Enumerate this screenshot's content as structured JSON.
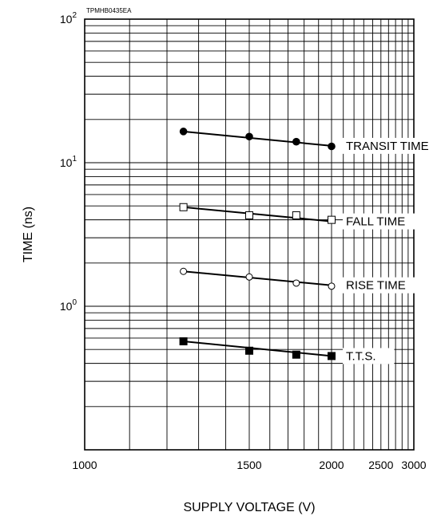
{
  "figure_code": "TPMHB0435EA",
  "chart_data": {
    "type": "line",
    "xlabel": "SUPPLY VOLTAGE (V)",
    "ylabel": "TIME (ns)",
    "x_scale": "reciprocal",
    "y_scale": "log",
    "xlim": [
      1000,
      3000
    ],
    "ylim": [
      0.1,
      100
    ],
    "grid": true,
    "x_ticks": [
      1000,
      1500,
      2000,
      2500,
      3000
    ],
    "x_tick_labels": [
      "1000",
      "1500",
      "2000",
      "2500",
      "3000"
    ],
    "y_tick_labels": [
      {
        "base": "10",
        "exp": "0",
        "value": 1
      },
      {
        "base": "10",
        "exp": "1",
        "value": 10
      },
      {
        "base": "10",
        "exp": "2",
        "value": 100
      }
    ],
    "series": [
      {
        "name": "TRANSIT TIME",
        "marker": "filled-circle",
        "x": [
          1250,
          1500,
          1750,
          2000
        ],
        "y": [
          16.5,
          15.2,
          14.0,
          13.0
        ],
        "fit": [
          16.5,
          13.1
        ]
      },
      {
        "name": "FALL TIME",
        "marker": "open-square",
        "x": [
          1250,
          1500,
          1750,
          2000
        ],
        "y": [
          4.9,
          4.3,
          4.3,
          4.0
        ],
        "fit": [
          4.9,
          3.9
        ]
      },
      {
        "name": "RISE TIME",
        "marker": "open-circle",
        "x": [
          1250,
          1500,
          1750,
          2000
        ],
        "y": [
          1.75,
          1.6,
          1.45,
          1.38
        ],
        "fit": [
          1.75,
          1.4
        ]
      },
      {
        "name": "T.T.S.",
        "marker": "filled-square",
        "x": [
          1250,
          1500,
          1750,
          2000
        ],
        "y": [
          0.57,
          0.49,
          0.46,
          0.45
        ],
        "fit": [
          0.57,
          0.45
        ]
      }
    ]
  }
}
